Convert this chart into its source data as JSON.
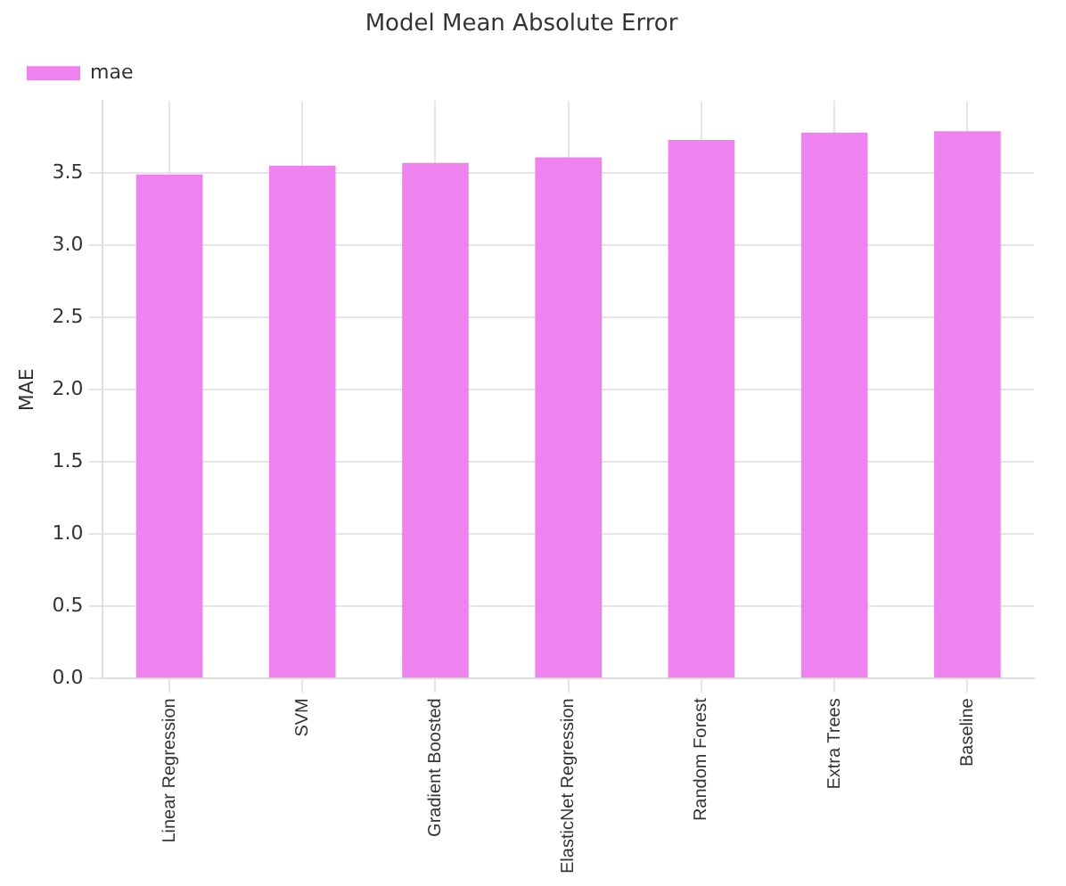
{
  "chart_data": {
    "type": "bar",
    "title": "Model Mean Absolute Error",
    "ylabel": "MAE",
    "categories": [
      "Linear Regression",
      "SVM",
      "Gradient Boosted",
      "ElasticNet Regression",
      "Random Forest",
      "Extra Trees",
      "Baseline"
    ],
    "series": [
      {
        "name": "mae",
        "color": "#ee82ee",
        "values": [
          3.49,
          3.55,
          3.57,
          3.61,
          3.73,
          3.78,
          3.79
        ]
      }
    ],
    "ylim": [
      0,
      4.0
    ],
    "yticks": [
      {
        "value": 0,
        "label": "0.0"
      },
      {
        "value": 0.5,
        "label": "0.5"
      },
      {
        "value": 1,
        "label": "1.0"
      },
      {
        "value": 1.5,
        "label": "1.5"
      },
      {
        "value": 2,
        "label": "2.0"
      },
      {
        "value": 2.5,
        "label": "2.5"
      },
      {
        "value": 3,
        "label": "3.0"
      },
      {
        "value": 3.5,
        "label": "3.5"
      }
    ],
    "grid": true,
    "legend": "top left"
  }
}
